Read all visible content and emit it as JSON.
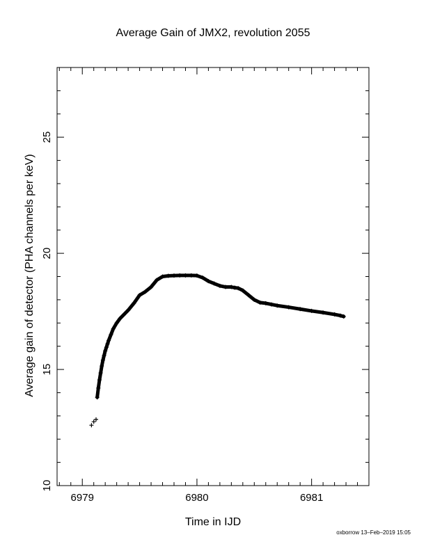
{
  "chart_data": {
    "type": "scatter",
    "title": "Average Gain of JMX2, revolution 2055",
    "xlabel": "Time in IJD",
    "ylabel": "Average gain of detector (PHA channels per keV)",
    "xlim": [
      6978.78,
      6981.5
    ],
    "ylim": [
      10,
      28
    ],
    "xticks": [
      6979,
      6980,
      6981
    ],
    "yticks": [
      10,
      15,
      20,
      25
    ],
    "grid": false,
    "marker": "+",
    "series": [
      {
        "x": [
          6979.08,
          6979.1,
          6979.12,
          6979.13,
          6979.14,
          6979.15,
          6979.16,
          6979.17,
          6979.18,
          6979.19,
          6979.2,
          6979.21,
          6979.22,
          6979.23,
          6979.25,
          6979.27,
          6979.3,
          6979.33,
          6979.36,
          6979.4,
          6979.45,
          6979.5,
          6979.55,
          6979.6,
          6979.65,
          6979.7,
          6979.75,
          6979.8,
          6979.85,
          6979.9,
          6979.95,
          6980.0,
          6980.05,
          6980.1,
          6980.15,
          6980.2,
          6980.25,
          6980.3,
          6980.33,
          6980.36,
          6980.4,
          6980.45,
          6980.5,
          6980.55,
          6980.6,
          6980.65,
          6980.7,
          6980.8,
          6980.9,
          6981.0,
          6981.1,
          6981.2,
          6981.25,
          6981.28
        ],
        "y": [
          12.6,
          12.75,
          12.85,
          13.8,
          14.2,
          14.55,
          14.85,
          15.15,
          15.4,
          15.6,
          15.8,
          15.95,
          16.1,
          16.25,
          16.5,
          16.75,
          17.0,
          17.2,
          17.35,
          17.55,
          17.85,
          18.2,
          18.35,
          18.55,
          18.85,
          19.0,
          19.03,
          19.04,
          19.05,
          19.05,
          19.05,
          19.04,
          18.95,
          18.8,
          18.7,
          18.6,
          18.55,
          18.55,
          18.52,
          18.5,
          18.4,
          18.2,
          18.0,
          17.88,
          17.85,
          17.8,
          17.75,
          17.68,
          17.6,
          17.52,
          17.45,
          17.37,
          17.32,
          17.28
        ]
      }
    ]
  },
  "footer_text": "oxborrow 13–Feb–2019 15:05"
}
